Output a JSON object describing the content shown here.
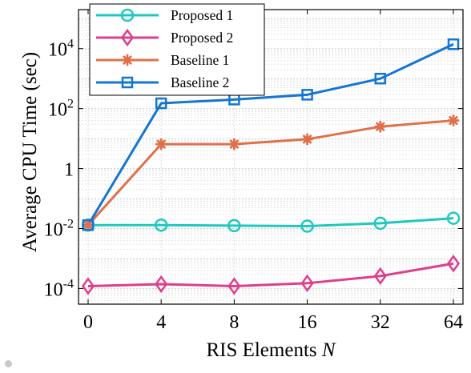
{
  "chart_data": {
    "type": "line",
    "title": "",
    "xlabel": "RIS Elements",
    "xlabel_var": "N",
    "ylabel": "Average CPU Time (sec)",
    "y_scale": "log",
    "ylim": [
      3e-05,
      200000
    ],
    "grid": true,
    "legend_position": "top-left",
    "categories": [
      "0",
      "4",
      "8",
      "16",
      "32",
      "64"
    ],
    "y_ticks": [
      {
        "value": 0.0001,
        "base": "10",
        "exp": "-4"
      },
      {
        "value": 0.01,
        "base": "10",
        "exp": "-2"
      },
      {
        "value": 1,
        "base": "1",
        "exp": ""
      },
      {
        "value": 100,
        "base": "10",
        "exp": "2"
      },
      {
        "value": 10000,
        "base": "10",
        "exp": "4"
      }
    ],
    "series": [
      {
        "name": "Proposed 1",
        "color": "#1ec8c0",
        "marker": "circle",
        "values": [
          0.013,
          0.013,
          0.0125,
          0.012,
          0.015,
          0.022
        ]
      },
      {
        "name": "Proposed 2",
        "color": "#de3f8c",
        "marker": "diamond",
        "values": [
          0.00012,
          0.00014,
          0.00012,
          0.00015,
          0.00026,
          0.00068
        ]
      },
      {
        "name": "Baseline 1",
        "color": "#e0704a",
        "marker": "asterisk",
        "values": [
          0.013,
          6.5,
          6.5,
          9.5,
          25,
          40
        ]
      },
      {
        "name": "Baseline 2",
        "color": "#1475d3",
        "marker": "square",
        "values": [
          0.013,
          150,
          200,
          290,
          1000,
          14000
        ]
      }
    ]
  }
}
